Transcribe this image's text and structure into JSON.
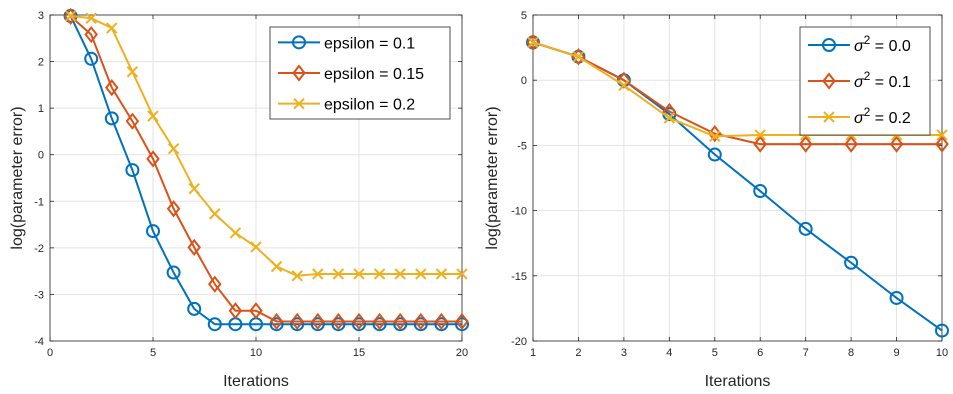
{
  "chart_data": [
    {
      "type": "line",
      "xlabel": "Iterations",
      "ylabel": "log(parameter error)",
      "xlim": [
        0,
        20
      ],
      "ylim": [
        -4,
        3
      ],
      "xticks": [
        0,
        5,
        10,
        15,
        20
      ],
      "yticks": [
        -4,
        -3,
        -2,
        -1,
        0,
        1,
        2,
        3
      ],
      "grid": true,
      "legend_position": "top-right",
      "series": [
        {
          "name": "epsilon = 0.1",
          "color": "#0072BD",
          "marker": "circle",
          "x": [
            1,
            2,
            3,
            4,
            5,
            6,
            7,
            8,
            9,
            10,
            11,
            12,
            13,
            14,
            15,
            16,
            17,
            18,
            19,
            20
          ],
          "y": [
            2.98,
            2.06,
            0.78,
            -0.33,
            -1.64,
            -2.53,
            -3.31,
            -3.64,
            -3.64,
            -3.64,
            -3.64,
            -3.64,
            -3.64,
            -3.64,
            -3.64,
            -3.64,
            -3.64,
            -3.64,
            -3.64,
            -3.64
          ]
        },
        {
          "name": "epsilon = 0.15",
          "color": "#D95319",
          "marker": "diamond",
          "x": [
            1,
            2,
            3,
            4,
            5,
            6,
            7,
            8,
            9,
            10,
            11,
            12,
            13,
            14,
            15,
            16,
            17,
            18,
            19,
            20
          ],
          "y": [
            2.97,
            2.58,
            1.44,
            0.72,
            -0.09,
            -1.16,
            -1.99,
            -2.78,
            -3.35,
            -3.35,
            -3.58,
            -3.58,
            -3.58,
            -3.58,
            -3.58,
            -3.58,
            -3.58,
            -3.58,
            -3.58,
            -3.58
          ]
        },
        {
          "name": "epsilon = 0.2",
          "color": "#EDB120",
          "marker": "x",
          "x": [
            1,
            2,
            3,
            4,
            5,
            6,
            7,
            8,
            9,
            10,
            11,
            12,
            13,
            14,
            15,
            16,
            17,
            18,
            19,
            20
          ],
          "y": [
            2.98,
            2.93,
            2.72,
            1.78,
            0.83,
            0.13,
            -0.73,
            -1.27,
            -1.68,
            -1.98,
            -2.4,
            -2.6,
            -2.56,
            -2.56,
            -2.56,
            -2.56,
            -2.56,
            -2.56,
            -2.56,
            -2.56
          ]
        }
      ]
    },
    {
      "type": "line",
      "xlabel": "Iterations",
      "ylabel": "log(parameter error)",
      "xlim": [
        1,
        10
      ],
      "ylim": [
        -20,
        5
      ],
      "xticks": [
        1,
        2,
        3,
        4,
        5,
        6,
        7,
        8,
        9,
        10
      ],
      "yticks": [
        -20,
        -15,
        -10,
        -5,
        0,
        5
      ],
      "grid": true,
      "legend_position": "top-right",
      "series": [
        {
          "name": "σ² = 0.0",
          "color": "#0072BD",
          "marker": "circle",
          "x": [
            1,
            2,
            3,
            4,
            5,
            6,
            7,
            8,
            9,
            10
          ],
          "y": [
            2.9,
            1.8,
            0.0,
            -2.6,
            -5.7,
            -8.5,
            -11.4,
            -14.0,
            -16.7,
            -19.2
          ]
        },
        {
          "name": "σ² = 0.1",
          "color": "#D95319",
          "marker": "diamond",
          "x": [
            1,
            2,
            3,
            4,
            5,
            6,
            7,
            8,
            9,
            10
          ],
          "y": [
            2.9,
            1.8,
            0.0,
            -2.4,
            -4.1,
            -4.9,
            -4.9,
            -4.9,
            -4.9,
            -4.9
          ]
        },
        {
          "name": "σ² = 0.2",
          "color": "#EDB120",
          "marker": "x",
          "x": [
            1,
            2,
            3,
            4,
            5,
            6,
            7,
            8,
            9,
            10
          ],
          "y": [
            2.9,
            1.8,
            -0.4,
            -2.9,
            -4.3,
            -4.2,
            -4.2,
            -4.2,
            -4.2,
            -4.2
          ]
        }
      ]
    }
  ]
}
